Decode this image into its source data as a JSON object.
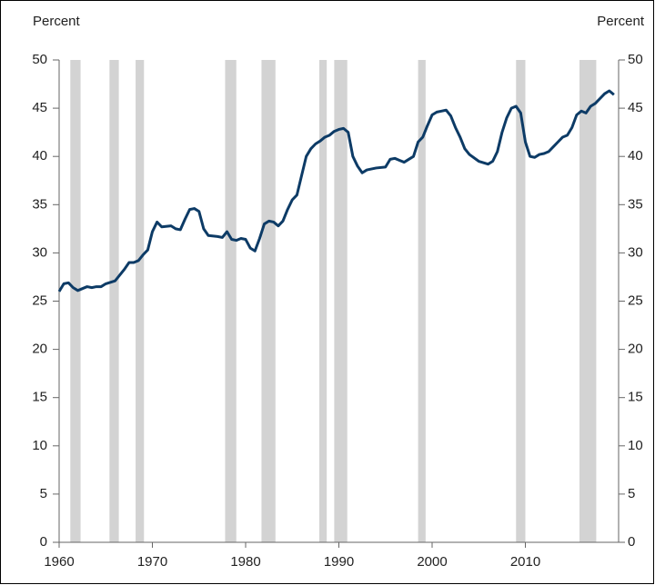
{
  "chart_data": {
    "type": "line",
    "y_label": "Percent",
    "y2_label": "Percent",
    "xlim": [
      1960,
      2020
    ],
    "xticks": [
      1960,
      1970,
      1980,
      1990,
      2000,
      2010
    ],
    "ylim": [
      0,
      50
    ],
    "yticks": [
      0,
      5,
      10,
      15,
      20,
      25,
      30,
      35,
      40,
      45,
      50
    ],
    "y2lim": [
      0,
      50
    ],
    "y2ticks": [
      0,
      5,
      10,
      15,
      20,
      25,
      30,
      35,
      40,
      45,
      50
    ],
    "color": "#0d3b66",
    "shade_color": "#d3d3d3",
    "shaded_periods": [
      [
        1961.2,
        1962.3
      ],
      [
        1965.4,
        1966.4
      ],
      [
        1968.2,
        1969.1
      ],
      [
        1977.8,
        1979.0
      ],
      [
        1981.7,
        1983.2
      ],
      [
        1987.9,
        1988.7
      ],
      [
        1989.5,
        1990.9
      ],
      [
        1998.5,
        1999.3
      ],
      [
        2009.0,
        2010.0
      ],
      [
        2015.8,
        2017.6
      ]
    ],
    "x": [
      1960,
      1960.5,
      1961,
      1961.5,
      1962,
      1962.5,
      1963,
      1963.5,
      1964,
      1964.5,
      1965,
      1966,
      1966.5,
      1967,
      1967.5,
      1968,
      1968.5,
      1969,
      1969.5,
      1970,
      1970.5,
      1971,
      1972,
      1972.5,
      1973,
      1973.5,
      1974,
      1974.5,
      1975,
      1975.5,
      1976,
      1977,
      1977.5,
      1978,
      1978.5,
      1979,
      1979.5,
      1980,
      1980.5,
      1981,
      1981.5,
      1982,
      1982.5,
      1983,
      1983.5,
      1984,
      1984.5,
      1985,
      1985.5,
      1986,
      1986.5,
      1987,
      1987.5,
      1988,
      1988.5,
      1989,
      1989.5,
      1990,
      1990.5,
      1991,
      1991.5,
      1992,
      1992.5,
      1993,
      1994,
      1995,
      1995.5,
      1996,
      1996.5,
      1997,
      1998,
      1998.5,
      1999,
      1999.5,
      2000,
      2000.5,
      2001,
      2001.5,
      2002,
      2002.5,
      2003,
      2003.5,
      2004,
      2005,
      2006,
      2006.5,
      2007,
      2007.5,
      2008,
      2008.5,
      2009,
      2009.5,
      2010,
      2010.5,
      2011,
      2011.5,
      2012,
      2012.5,
      2013,
      2013.5,
      2014,
      2014.5,
      2015,
      2015.5,
      2016,
      2016.5,
      2017,
      2017.5,
      2018,
      2018.5,
      2019,
      2019.5
    ],
    "values": [
      26.0,
      26.8,
      26.9,
      26.4,
      26.1,
      26.3,
      26.5,
      26.4,
      26.5,
      26.5,
      26.8,
      27.1,
      27.7,
      28.3,
      29.0,
      29.0,
      29.2,
      29.8,
      30.3,
      32.2,
      33.2,
      32.7,
      32.8,
      32.5,
      32.4,
      33.5,
      34.5,
      34.6,
      34.3,
      32.5,
      31.8,
      31.7,
      31.6,
      32.2,
      31.4,
      31.3,
      31.5,
      31.4,
      30.5,
      30.2,
      31.5,
      33.0,
      33.3,
      33.2,
      32.8,
      33.3,
      34.5,
      35.5,
      36.0,
      38.0,
      40.0,
      40.8,
      41.3,
      41.6,
      42.0,
      42.2,
      42.6,
      42.8,
      42.9,
      42.5,
      40.0,
      39.0,
      38.3,
      38.6,
      38.8,
      38.9,
      39.7,
      39.8,
      39.6,
      39.4,
      40.0,
      41.5,
      42.0,
      43.2,
      44.3,
      44.6,
      44.7,
      44.8,
      44.2,
      43.0,
      42.0,
      40.8,
      40.2,
      39.5,
      39.2,
      39.5,
      40.5,
      42.5,
      44.0,
      45.0,
      45.2,
      44.5,
      41.5,
      40.0,
      39.9,
      40.2,
      40.3,
      40.5,
      41.0,
      41.5,
      42.0,
      42.2,
      43.0,
      44.3,
      44.7,
      44.5,
      45.2,
      45.5,
      46.0,
      46.5,
      46.8,
      46.4
    ]
  }
}
